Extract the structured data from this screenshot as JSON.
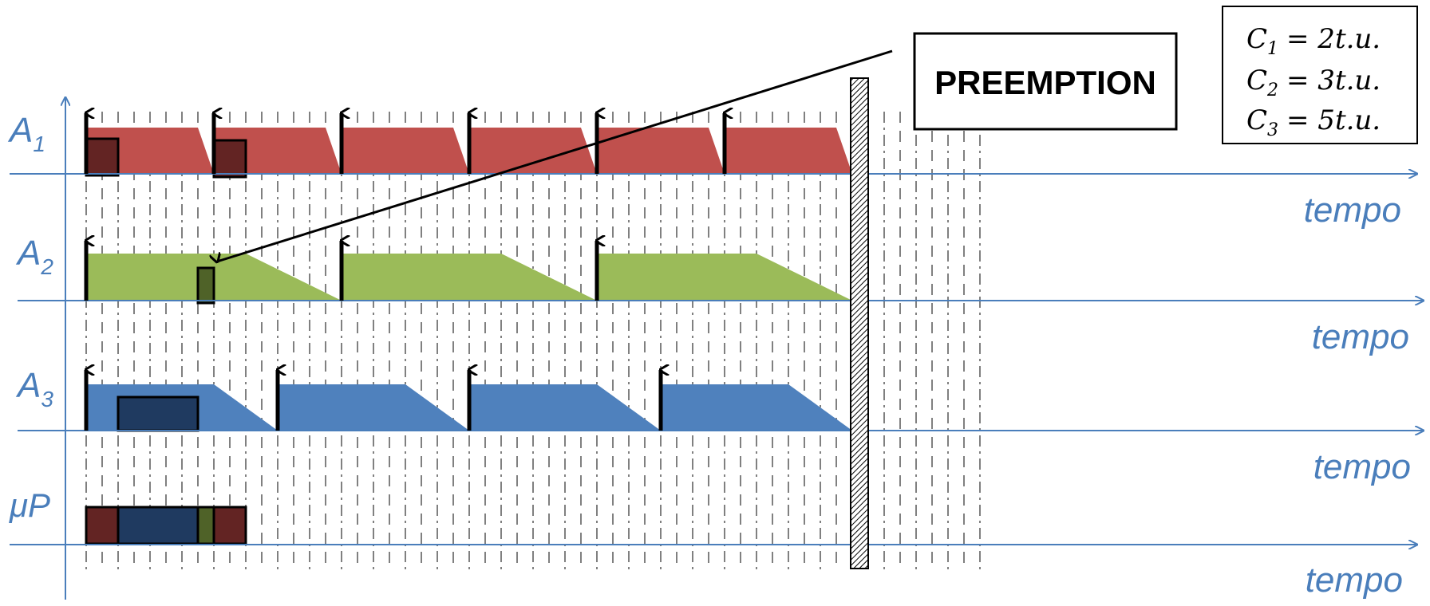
{
  "rows": [
    {
      "id": "A1",
      "label_main": "A",
      "label_sub": "1",
      "color": "#c0504d",
      "dark": "#632423"
    },
    {
      "id": "A2",
      "label_main": "A",
      "label_sub": "2",
      "color": "#9bbb59",
      "dark": "#4f6228"
    },
    {
      "id": "A3",
      "label_main": "A",
      "label_sub": "3",
      "color": "#4f81bd",
      "dark": "#1f3a60"
    },
    {
      "id": "uP",
      "label_main": "μP",
      "label_sub": ""
    }
  ],
  "axis_label": "tempo",
  "callout": {
    "text": "PREEMPTION"
  },
  "formulas": [
    {
      "lhs": "C",
      "sub": "1",
      "rhs": "= 2t.u."
    },
    {
      "lhs": "C",
      "sub": "2",
      "rhs": "= 3t.u."
    },
    {
      "lhs": "C",
      "sub": "3",
      "rhs": "= 5t.u."
    }
  ],
  "colors": {
    "axis": "#4a7ebb",
    "grid": "#808080"
  }
}
